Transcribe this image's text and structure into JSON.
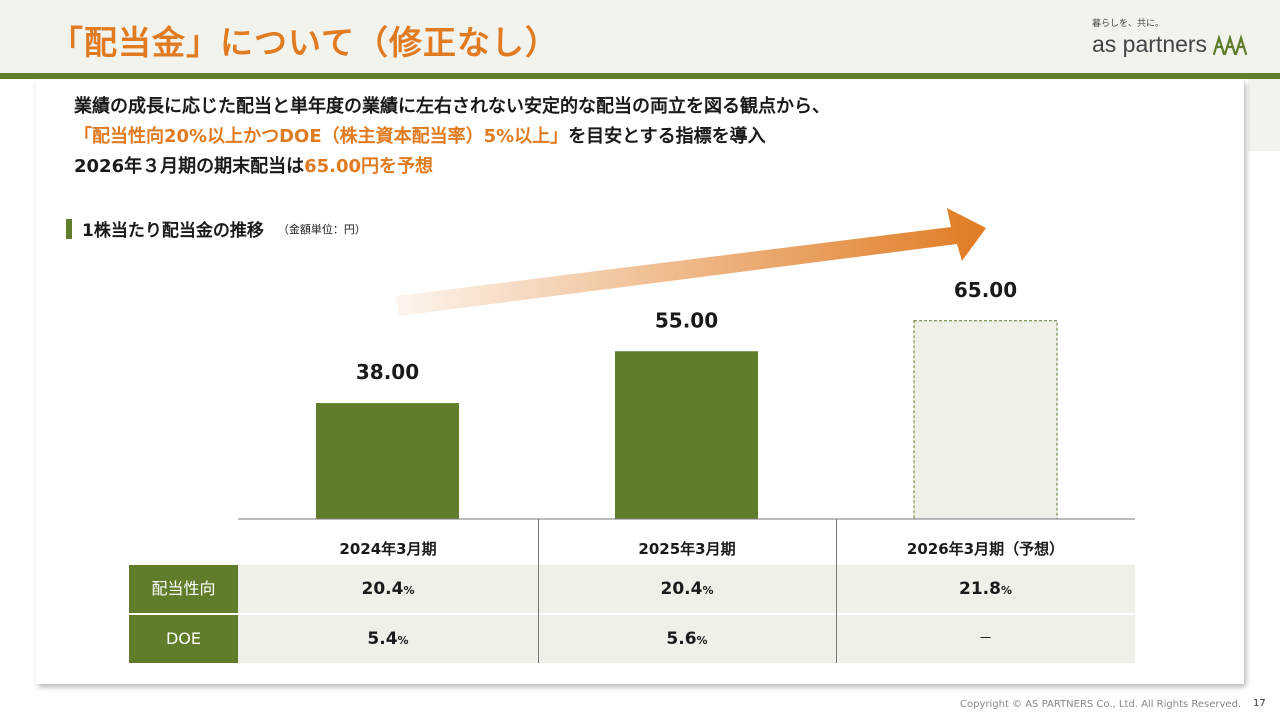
{
  "header": {
    "title": "「配当金」について（修正なし）",
    "logo_tagline": "暮らしを、共に。",
    "logo_text": "as partners"
  },
  "intro": {
    "line1": "業績の成長に応じた配当と単年度の業績に左右されない安定的な配当の両立を図る観点から、",
    "line2_highlight": "「配当性向20%以上かつDOE（株主資本配当率）5%以上」",
    "line2_rest": "を目安とする指標を導入",
    "line3_prefix": "2026年３月期の期末配当は",
    "line3_highlight": "65.00円を予想"
  },
  "section": {
    "title": "1株当たり配当金の推移",
    "unit": "（金額単位：円）"
  },
  "chart_data": {
    "type": "bar",
    "categories": [
      "2024年3月期",
      "2025年3月期",
      "2026年3月期（予想）"
    ],
    "values": [
      38.0,
      55.0,
      65.0
    ],
    "value_labels": [
      "38.00",
      "55.00",
      "65.00"
    ],
    "forecast": [
      false,
      false,
      true
    ],
    "ylim": [
      0,
      100
    ],
    "grid": false,
    "colors": {
      "bar": "#5f7d2a",
      "forecast_fill": "#eff0e8",
      "forecast_border": "#5f7d2a",
      "arrow": "#e07b22"
    }
  },
  "table": {
    "columns": [
      "2024年3月期",
      "2025年3月期",
      "2026年3月期（予想）"
    ],
    "rows": [
      {
        "label": "配当性向",
        "cells": [
          {
            "num": "20.4",
            "unit": "%"
          },
          {
            "num": "20.4",
            "unit": "%"
          },
          {
            "num": "21.8",
            "unit": "%"
          }
        ]
      },
      {
        "label": "DOE",
        "cells": [
          {
            "num": "5.4",
            "unit": "%"
          },
          {
            "num": "5.6",
            "unit": "%"
          },
          {
            "num": "－",
            "unit": ""
          }
        ]
      }
    ]
  },
  "footer": {
    "copyright": "Copyright © AS PARTNERS Co., Ltd. All Rights Reserved.",
    "page": "17"
  },
  "colors": {
    "accent_orange": "#e07b22",
    "brand_green": "#5f7d2a"
  }
}
